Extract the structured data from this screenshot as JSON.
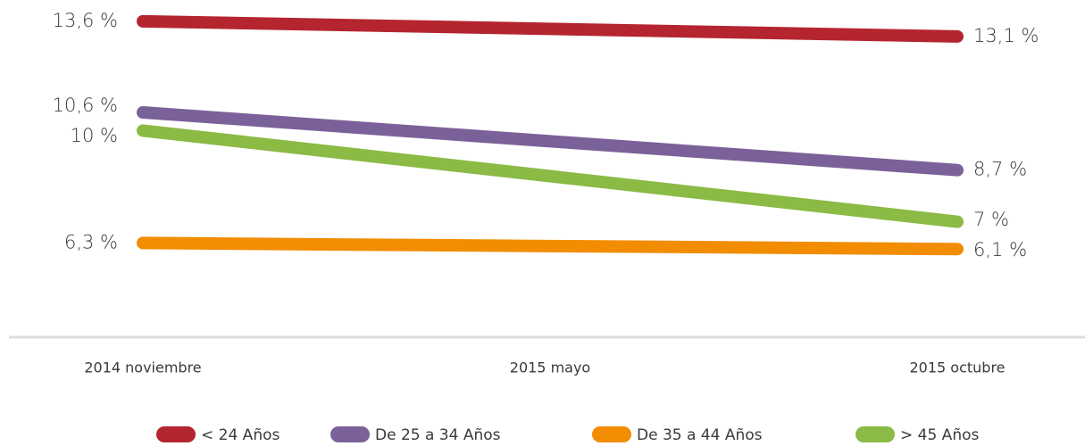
{
  "chart_data": {
    "type": "line",
    "categories": [
      "2014 noviembre",
      "2015 mayo",
      "2015 octubre"
    ],
    "ylim": [
      3.2,
      14.3
    ],
    "series": [
      {
        "name": "< 24 Años",
        "color": "#b5252f",
        "values": [
          13.6,
          13.35,
          13.1
        ],
        "value_labels": [
          "13,6 %",
          null,
          "13,1 %"
        ]
      },
      {
        "name": "De 25 a 34 Años",
        "color": "#7b6199",
        "values": [
          10.6,
          9.65,
          8.7
        ],
        "value_labels": [
          "10,6 %",
          null,
          "8,7 %"
        ]
      },
      {
        "name": "De 35 a 44 Años",
        "color": "#f28c00",
        "values": [
          6.3,
          6.2,
          6.1
        ],
        "value_labels": [
          "6,3 %",
          null,
          "6,1 %"
        ]
      },
      {
        "name": "> 45 Años",
        "color": "#8bba45",
        "values": [
          10,
          8.5,
          7
        ],
        "value_labels": [
          "10 %",
          null,
          "7 %"
        ]
      }
    ]
  }
}
